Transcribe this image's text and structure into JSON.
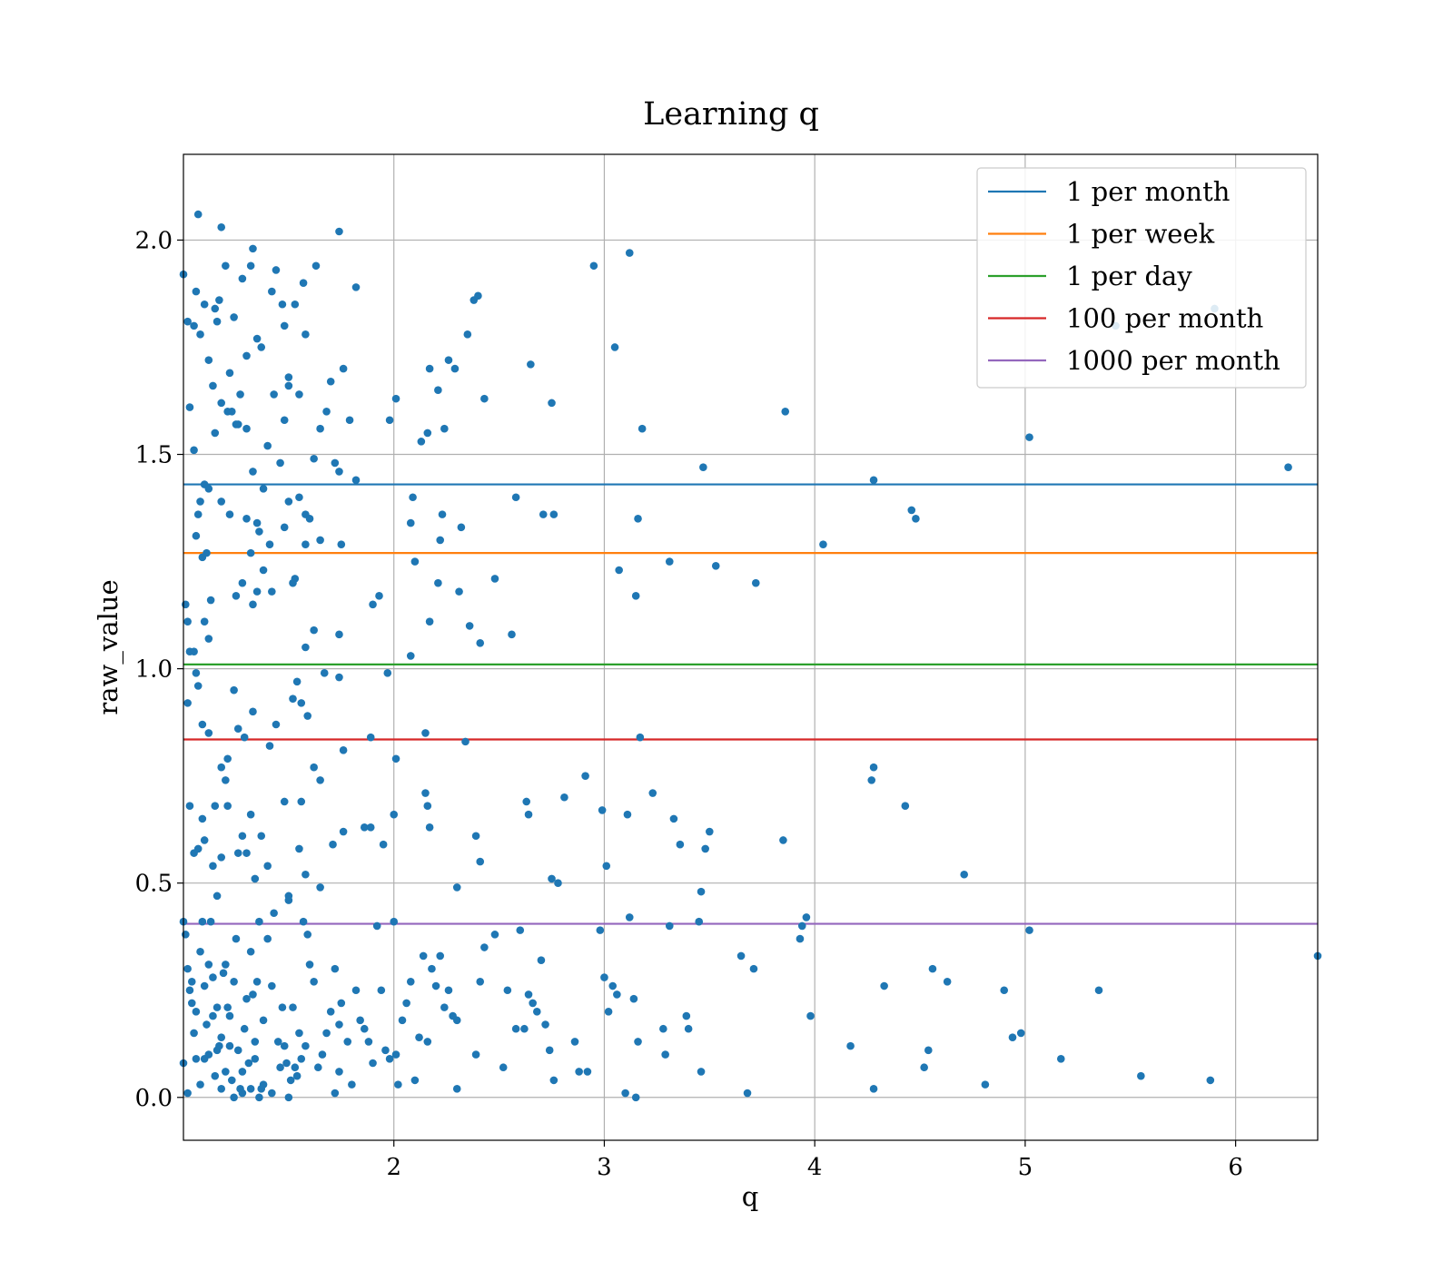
{
  "chart_data": {
    "type": "scatter",
    "title": "Learning q",
    "xlabel": "q",
    "ylabel": "raw_value",
    "xlim": [
      1.0,
      6.39
    ],
    "ylim": [
      -0.1,
      2.2
    ],
    "xticks": [
      2,
      3,
      4,
      5,
      6
    ],
    "yticks": [
      0.0,
      0.5,
      1.0,
      1.5,
      2.0
    ],
    "xtick_labels": [
      "2",
      "3",
      "4",
      "5",
      "6"
    ],
    "ytick_labels": [
      "0.0",
      "0.5",
      "1.0",
      "1.5",
      "2.0"
    ],
    "grid": true,
    "legend_position": "top-right",
    "point_color": "#1f77b4",
    "hlines": [
      {
        "name": "1 per month",
        "y": 1.43,
        "color": "#1f77b4"
      },
      {
        "name": "1 per week",
        "y": 1.27,
        "color": "#ff7f0e"
      },
      {
        "name": "1 per day",
        "y": 1.01,
        "color": "#2ca02c"
      },
      {
        "name": "100 per month",
        "y": 0.835,
        "color": "#d62728"
      },
      {
        "name": "1000 per month",
        "y": 0.405,
        "color": "#9467bd"
      }
    ],
    "points": [
      [
        1.0,
        1.92
      ],
      [
        1.02,
        1.81
      ],
      [
        1.03,
        1.61
      ],
      [
        1.05,
        1.8
      ],
      [
        1.06,
        1.88
      ],
      [
        1.07,
        2.06
      ],
      [
        1.08,
        1.78
      ],
      [
        1.1,
        1.85
      ],
      [
        1.12,
        1.72
      ],
      [
        1.14,
        1.66
      ],
      [
        1.15,
        1.84
      ],
      [
        1.16,
        1.81
      ],
      [
        1.17,
        1.86
      ],
      [
        1.18,
        2.03
      ],
      [
        1.2,
        1.94
      ],
      [
        1.22,
        1.69
      ],
      [
        1.24,
        1.82
      ],
      [
        1.26,
        1.57
      ],
      [
        1.28,
        1.91
      ],
      [
        1.3,
        1.73
      ],
      [
        1.32,
        1.94
      ],
      [
        1.33,
        1.98
      ],
      [
        1.35,
        1.77
      ],
      [
        1.37,
        1.75
      ],
      [
        1.42,
        1.88
      ],
      [
        1.44,
        1.93
      ],
      [
        1.47,
        1.85
      ],
      [
        1.48,
        1.8
      ],
      [
        1.5,
        1.66
      ],
      [
        1.53,
        1.85
      ],
      [
        1.57,
        1.9
      ],
      [
        1.58,
        1.78
      ],
      [
        1.63,
        1.94
      ],
      [
        1.74,
        2.02
      ],
      [
        1.82,
        1.89
      ],
      [
        1.05,
        1.51
      ],
      [
        1.1,
        1.43
      ],
      [
        1.12,
        1.42
      ],
      [
        1.15,
        1.55
      ],
      [
        1.18,
        1.62
      ],
      [
        1.21,
        1.6
      ],
      [
        1.23,
        1.6
      ],
      [
        1.25,
        1.57
      ],
      [
        1.27,
        1.64
      ],
      [
        1.3,
        1.56
      ],
      [
        1.33,
        1.46
      ],
      [
        1.35,
        1.34
      ],
      [
        1.38,
        1.42
      ],
      [
        1.4,
        1.52
      ],
      [
        1.43,
        1.64
      ],
      [
        1.46,
        1.48
      ],
      [
        1.48,
        1.58
      ],
      [
        1.5,
        1.68
      ],
      [
        1.53,
        1.21
      ],
      [
        1.55,
        1.64
      ],
      [
        1.58,
        1.36
      ],
      [
        1.62,
        1.49
      ],
      [
        1.65,
        1.56
      ],
      [
        1.68,
        1.6
      ],
      [
        1.7,
        1.67
      ],
      [
        1.72,
        1.48
      ],
      [
        1.74,
        1.46
      ],
      [
        1.76,
        1.7
      ],
      [
        1.79,
        1.58
      ],
      [
        1.82,
        1.44
      ],
      [
        1.98,
        1.58
      ],
      [
        2.01,
        1.63
      ],
      [
        2.13,
        1.53
      ],
      [
        2.16,
        1.55
      ],
      [
        2.17,
        1.7
      ],
      [
        2.21,
        1.65
      ],
      [
        2.24,
        1.56
      ],
      [
        2.26,
        1.72
      ],
      [
        2.29,
        1.7
      ],
      [
        2.35,
        1.78
      ],
      [
        2.38,
        1.86
      ],
      [
        2.4,
        1.87
      ],
      [
        2.43,
        1.63
      ],
      [
        2.65,
        1.71
      ],
      [
        2.75,
        1.62
      ],
      [
        2.95,
        1.94
      ],
      [
        3.05,
        1.75
      ],
      [
        3.12,
        1.97
      ],
      [
        3.18,
        1.56
      ],
      [
        3.47,
        1.47
      ],
      [
        3.86,
        1.6
      ],
      [
        4.28,
        1.44
      ],
      [
        4.46,
        1.37
      ],
      [
        4.48,
        1.35
      ],
      [
        5.02,
        1.54
      ],
      [
        5.43,
        1.8
      ],
      [
        5.9,
        1.84
      ],
      [
        6.25,
        1.47
      ],
      [
        1.01,
        1.15
      ],
      [
        1.02,
        1.11
      ],
      [
        1.03,
        1.04
      ],
      [
        1.05,
        1.04
      ],
      [
        1.06,
        1.31
      ],
      [
        1.07,
        1.36
      ],
      [
        1.08,
        1.39
      ],
      [
        1.09,
        1.26
      ],
      [
        1.1,
        1.11
      ],
      [
        1.11,
        1.27
      ],
      [
        1.12,
        1.07
      ],
      [
        1.13,
        1.16
      ],
      [
        1.18,
        1.39
      ],
      [
        1.22,
        1.36
      ],
      [
        1.25,
        1.17
      ],
      [
        1.28,
        1.2
      ],
      [
        1.3,
        1.35
      ],
      [
        1.32,
        1.27
      ],
      [
        1.33,
        1.15
      ],
      [
        1.35,
        1.18
      ],
      [
        1.36,
        1.32
      ],
      [
        1.38,
        1.23
      ],
      [
        1.41,
        1.29
      ],
      [
        1.42,
        1.18
      ],
      [
        1.48,
        1.33
      ],
      [
        1.5,
        1.39
      ],
      [
        1.52,
        1.2
      ],
      [
        1.55,
        1.4
      ],
      [
        1.58,
        1.29
      ],
      [
        1.6,
        1.35
      ],
      [
        1.62,
        1.09
      ],
      [
        1.65,
        1.3
      ],
      [
        1.58,
        1.05
      ],
      [
        1.74,
        1.08
      ],
      [
        1.75,
        1.29
      ],
      [
        1.9,
        1.15
      ],
      [
        1.93,
        1.17
      ],
      [
        2.08,
        1.34
      ],
      [
        2.09,
        1.4
      ],
      [
        2.1,
        1.25
      ],
      [
        2.17,
        1.11
      ],
      [
        2.21,
        1.2
      ],
      [
        2.22,
        1.3
      ],
      [
        2.23,
        1.36
      ],
      [
        2.31,
        1.18
      ],
      [
        2.32,
        1.33
      ],
      [
        2.36,
        1.1
      ],
      [
        2.41,
        1.06
      ],
      [
        2.48,
        1.21
      ],
      [
        2.56,
        1.08
      ],
      [
        2.58,
        1.4
      ],
      [
        2.71,
        1.36
      ],
      [
        2.76,
        1.36
      ],
      [
        3.07,
        1.23
      ],
      [
        3.15,
        1.17
      ],
      [
        3.16,
        1.35
      ],
      [
        3.31,
        1.25
      ],
      [
        3.53,
        1.24
      ],
      [
        3.72,
        1.2
      ],
      [
        4.04,
        1.29
      ],
      [
        1.02,
        0.92
      ],
      [
        1.06,
        0.99
      ],
      [
        1.07,
        0.96
      ],
      [
        1.09,
        0.87
      ],
      [
        1.12,
        0.85
      ],
      [
        1.15,
        0.68
      ],
      [
        1.18,
        0.77
      ],
      [
        1.2,
        0.74
      ],
      [
        1.21,
        0.79
      ],
      [
        1.24,
        0.95
      ],
      [
        1.26,
        0.86
      ],
      [
        1.29,
        0.84
      ],
      [
        1.33,
        0.9
      ],
      [
        1.41,
        0.82
      ],
      [
        1.44,
        0.87
      ],
      [
        1.52,
        0.93
      ],
      [
        1.54,
        0.97
      ],
      [
        1.56,
        0.92
      ],
      [
        1.59,
        0.89
      ],
      [
        1.62,
        0.77
      ],
      [
        1.65,
        0.74
      ],
      [
        1.67,
        0.99
      ],
      [
        1.74,
        0.98
      ],
      [
        1.76,
        0.81
      ],
      [
        1.89,
        0.84
      ],
      [
        1.97,
        0.99
      ],
      [
        2.08,
        1.03
      ],
      [
        2.15,
        0.85
      ],
      [
        2.34,
        0.83
      ],
      [
        3.17,
        0.84
      ],
      [
        1.03,
        0.68
      ],
      [
        1.05,
        0.57
      ],
      [
        1.07,
        0.58
      ],
      [
        1.09,
        0.65
      ],
      [
        1.1,
        0.6
      ],
      [
        1.14,
        0.54
      ],
      [
        1.16,
        0.47
      ],
      [
        1.18,
        0.56
      ],
      [
        1.21,
        0.68
      ],
      [
        1.26,
        0.57
      ],
      [
        1.28,
        0.61
      ],
      [
        1.3,
        0.57
      ],
      [
        1.32,
        0.66
      ],
      [
        1.34,
        0.51
      ],
      [
        1.37,
        0.61
      ],
      [
        1.4,
        0.54
      ],
      [
        1.48,
        0.69
      ],
      [
        1.5,
        0.47
      ],
      [
        1.55,
        0.58
      ],
      [
        1.56,
        0.69
      ],
      [
        1.58,
        0.52
      ],
      [
        1.65,
        0.49
      ],
      [
        1.71,
        0.59
      ],
      [
        1.76,
        0.62
      ],
      [
        1.86,
        0.63
      ],
      [
        1.89,
        0.63
      ],
      [
        1.95,
        0.59
      ],
      [
        2.0,
        0.66
      ],
      [
        2.01,
        0.79
      ],
      [
        2.16,
        0.68
      ],
      [
        2.15,
        0.71
      ],
      [
        2.17,
        0.63
      ],
      [
        2.3,
        0.49
      ],
      [
        2.39,
        0.61
      ],
      [
        2.41,
        0.55
      ],
      [
        2.63,
        0.69
      ],
      [
        2.64,
        0.66
      ],
      [
        2.75,
        0.51
      ],
      [
        2.78,
        0.5
      ],
      [
        2.81,
        0.7
      ],
      [
        2.91,
        0.75
      ],
      [
        2.99,
        0.67
      ],
      [
        3.01,
        0.54
      ],
      [
        3.11,
        0.66
      ],
      [
        3.23,
        0.71
      ],
      [
        3.33,
        0.65
      ],
      [
        3.36,
        0.59
      ],
      [
        3.46,
        0.48
      ],
      [
        3.48,
        0.58
      ],
      [
        3.5,
        0.62
      ],
      [
        3.85,
        0.6
      ],
      [
        4.27,
        0.74
      ],
      [
        4.28,
        0.77
      ],
      [
        4.43,
        0.68
      ],
      [
        4.71,
        0.52
      ],
      [
        1.0,
        0.41
      ],
      [
        1.01,
        0.38
      ],
      [
        1.02,
        0.3
      ],
      [
        1.03,
        0.25
      ],
      [
        1.04,
        0.22
      ],
      [
        1.05,
        0.15
      ],
      [
        1.06,
        0.2
      ],
      [
        1.08,
        0.34
      ],
      [
        1.09,
        0.41
      ],
      [
        1.1,
        0.26
      ],
      [
        1.11,
        0.17
      ],
      [
        1.12,
        0.1
      ],
      [
        1.13,
        0.41
      ],
      [
        1.14,
        0.28
      ],
      [
        1.15,
        0.05
      ],
      [
        1.16,
        0.21
      ],
      [
        1.17,
        0.12
      ],
      [
        1.18,
        0.14
      ],
      [
        1.19,
        0.29
      ],
      [
        1.2,
        0.31
      ],
      [
        1.21,
        0.21
      ],
      [
        1.22,
        0.19
      ],
      [
        1.23,
        0.04
      ],
      [
        1.24,
        0.27
      ],
      [
        1.25,
        0.37
      ],
      [
        1.26,
        0.11
      ],
      [
        1.27,
        0.02
      ],
      [
        1.28,
        0.01
      ],
      [
        1.29,
        0.16
      ],
      [
        1.3,
        0.23
      ],
      [
        1.31,
        0.08
      ],
      [
        1.32,
        0.34
      ],
      [
        1.33,
        0.24
      ],
      [
        1.34,
        0.09
      ],
      [
        1.35,
        0.27
      ],
      [
        1.36,
        0.41
      ],
      [
        1.37,
        0.02
      ],
      [
        1.38,
        0.18
      ],
      [
        1.4,
        0.37
      ],
      [
        1.42,
        0.26
      ],
      [
        1.43,
        0.43
      ],
      [
        1.45,
        0.13
      ],
      [
        1.47,
        0.21
      ],
      [
        1.49,
        0.08
      ],
      [
        1.5,
        0.46
      ],
      [
        1.51,
        0.04
      ],
      [
        1.52,
        0.21
      ],
      [
        1.53,
        0.07
      ],
      [
        1.55,
        0.15
      ],
      [
        1.57,
        0.41
      ],
      [
        1.58,
        0.12
      ],
      [
        1.59,
        0.38
      ],
      [
        1.6,
        0.31
      ],
      [
        1.62,
        0.27
      ],
      [
        1.64,
        0.07
      ],
      [
        1.66,
        0.1
      ],
      [
        1.68,
        0.15
      ],
      [
        1.7,
        0.2
      ],
      [
        1.72,
        0.3
      ],
      [
        1.74,
        0.17
      ],
      [
        1.75,
        0.22
      ],
      [
        1.78,
        0.13
      ],
      [
        1.8,
        0.03
      ],
      [
        1.82,
        0.25
      ],
      [
        1.84,
        0.18
      ],
      [
        1.86,
        0.16
      ],
      [
        1.88,
        0.13
      ],
      [
        1.9,
        0.08
      ],
      [
        1.92,
        0.4
      ],
      [
        1.94,
        0.25
      ],
      [
        1.96,
        0.11
      ],
      [
        1.98,
        0.09
      ],
      [
        2.0,
        0.41
      ],
      [
        2.01,
        0.1
      ],
      [
        2.02,
        0.03
      ],
      [
        2.04,
        0.18
      ],
      [
        2.06,
        0.22
      ],
      [
        2.08,
        0.27
      ],
      [
        2.1,
        0.04
      ],
      [
        2.12,
        0.14
      ],
      [
        2.14,
        0.33
      ],
      [
        2.16,
        0.13
      ],
      [
        2.18,
        0.3
      ],
      [
        2.2,
        0.26
      ],
      [
        2.22,
        0.33
      ],
      [
        2.24,
        0.21
      ],
      [
        2.26,
        0.25
      ],
      [
        2.28,
        0.19
      ],
      [
        2.3,
        0.02
      ],
      [
        2.39,
        0.1
      ],
      [
        2.41,
        0.27
      ],
      [
        2.43,
        0.35
      ],
      [
        2.48,
        0.38
      ],
      [
        2.52,
        0.07
      ],
      [
        2.54,
        0.25
      ],
      [
        2.58,
        0.16
      ],
      [
        2.6,
        0.39
      ],
      [
        2.62,
        0.16
      ],
      [
        2.64,
        0.24
      ],
      [
        2.66,
        0.22
      ],
      [
        2.68,
        0.2
      ],
      [
        2.7,
        0.32
      ],
      [
        2.72,
        0.17
      ],
      [
        2.74,
        0.11
      ],
      [
        2.76,
        0.04
      ],
      [
        2.86,
        0.13
      ],
      [
        2.88,
        0.06
      ],
      [
        2.92,
        0.06
      ],
      [
        2.98,
        0.39
      ],
      [
        3.0,
        0.28
      ],
      [
        3.02,
        0.2
      ],
      [
        3.04,
        0.26
      ],
      [
        3.06,
        0.24
      ],
      [
        3.1,
        0.01
      ],
      [
        3.12,
        0.42
      ],
      [
        3.14,
        0.23
      ],
      [
        3.15,
        0.0
      ],
      [
        3.16,
        0.13
      ],
      [
        3.28,
        0.16
      ],
      [
        3.29,
        0.1
      ],
      [
        3.31,
        0.4
      ],
      [
        3.39,
        0.19
      ],
      [
        3.4,
        0.16
      ],
      [
        3.45,
        0.41
      ],
      [
        3.46,
        0.06
      ],
      [
        3.65,
        0.33
      ],
      [
        3.68,
        0.01
      ],
      [
        3.71,
        0.3
      ],
      [
        3.93,
        0.37
      ],
      [
        3.94,
        0.4
      ],
      [
        3.96,
        0.42
      ],
      [
        3.98,
        0.19
      ],
      [
        4.17,
        0.12
      ],
      [
        4.28,
        0.02
      ],
      [
        4.33,
        0.26
      ],
      [
        4.52,
        0.07
      ],
      [
        4.54,
        0.11
      ],
      [
        4.56,
        0.3
      ],
      [
        4.63,
        0.27
      ],
      [
        4.81,
        0.03
      ],
      [
        4.9,
        0.25
      ],
      [
        4.94,
        0.14
      ],
      [
        4.98,
        0.15
      ],
      [
        5.02,
        0.39
      ],
      [
        5.17,
        0.09
      ],
      [
        5.35,
        0.25
      ],
      [
        5.55,
        0.05
      ],
      [
        5.88,
        0.04
      ],
      [
        6.39,
        0.33
      ],
      [
        1.0,
        0.08
      ],
      [
        1.02,
        0.01
      ],
      [
        1.04,
        0.27
      ],
      [
        1.06,
        0.09
      ],
      [
        1.08,
        0.03
      ],
      [
        1.1,
        0.09
      ],
      [
        1.12,
        0.31
      ],
      [
        1.14,
        0.19
      ],
      [
        1.16,
        0.11
      ],
      [
        1.18,
        0.02
      ],
      [
        1.2,
        0.06
      ],
      [
        1.22,
        0.12
      ],
      [
        1.24,
        0.0
      ],
      [
        1.28,
        0.06
      ],
      [
        1.32,
        0.02
      ],
      [
        1.34,
        0.13
      ],
      [
        1.36,
        0.0
      ],
      [
        1.38,
        0.03
      ],
      [
        1.42,
        0.01
      ],
      [
        1.46,
        0.07
      ],
      [
        1.48,
        0.12
      ],
      [
        1.5,
        0.0
      ],
      [
        1.54,
        0.05
      ],
      [
        1.56,
        0.09
      ],
      [
        1.72,
        0.01
      ],
      [
        1.74,
        0.06
      ],
      [
        2.3,
        0.18
      ]
    ]
  }
}
